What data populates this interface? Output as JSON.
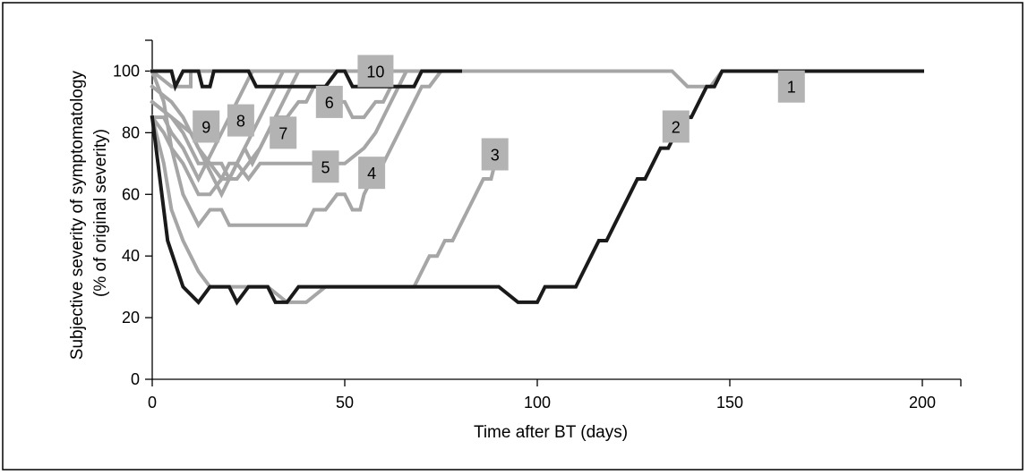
{
  "chart_data": {
    "type": "line",
    "xlabel": "Time after BT (days)",
    "ylabel_lines": [
      "Subjective severity of symptomatology",
      "(% of original severity)"
    ],
    "xlim": [
      0,
      210
    ],
    "ylim": [
      0,
      110
    ],
    "xticks": [
      0,
      50,
      100,
      150,
      200
    ],
    "yticks": [
      0,
      20,
      40,
      60,
      80,
      100
    ],
    "grid": false,
    "legend": "none",
    "colors": {
      "black": "#1a1a1a",
      "gray": "#a6a6a6",
      "label_box": "#b3b3b3"
    },
    "series": [
      {
        "name": "1",
        "color": "gray",
        "label_at": [
          166,
          95
        ],
        "points": [
          [
            0,
            100
          ],
          [
            5,
            95
          ],
          [
            10,
            95
          ],
          [
            10,
            100
          ],
          [
            130,
            100
          ],
          [
            132,
            100
          ],
          [
            135,
            100
          ],
          [
            139,
            95
          ],
          [
            142,
            95
          ],
          [
            145,
            95
          ],
          [
            148,
            100
          ],
          [
            160,
            100
          ],
          [
            164,
            100
          ],
          [
            166,
            95
          ],
          [
            167,
            100
          ],
          [
            200,
            100
          ]
        ]
      },
      {
        "name": "2",
        "color": "black",
        "label_at": [
          136,
          82
        ],
        "points": [
          [
            0,
            85
          ],
          [
            4,
            45
          ],
          [
            8,
            30
          ],
          [
            12,
            25
          ],
          [
            15,
            30
          ],
          [
            20,
            30
          ],
          [
            22,
            25
          ],
          [
            25,
            30
          ],
          [
            30,
            30
          ],
          [
            32,
            25
          ],
          [
            35,
            25
          ],
          [
            38,
            30
          ],
          [
            45,
            30
          ],
          [
            50,
            30
          ],
          [
            60,
            30
          ],
          [
            85,
            30
          ],
          [
            90,
            30
          ],
          [
            95,
            25
          ],
          [
            100,
            25
          ],
          [
            102,
            30
          ],
          [
            105,
            30
          ],
          [
            110,
            30
          ],
          [
            112,
            35
          ],
          [
            114,
            40
          ],
          [
            116,
            45
          ],
          [
            118,
            45
          ],
          [
            120,
            50
          ],
          [
            122,
            55
          ],
          [
            124,
            60
          ],
          [
            126,
            65
          ],
          [
            128,
            65
          ],
          [
            130,
            70
          ],
          [
            132,
            75
          ],
          [
            134,
            75
          ],
          [
            136,
            80
          ],
          [
            138,
            85
          ],
          [
            140,
            85
          ],
          [
            142,
            90
          ],
          [
            144,
            95
          ],
          [
            146,
            95
          ],
          [
            148,
            100
          ],
          [
            200,
            100
          ]
        ]
      },
      {
        "name": "3",
        "color": "gray",
        "label_at": [
          89,
          73
        ],
        "points": [
          [
            0,
            85
          ],
          [
            3,
            70
          ],
          [
            5,
            55
          ],
          [
            8,
            45
          ],
          [
            12,
            35
          ],
          [
            15,
            30
          ],
          [
            20,
            30
          ],
          [
            25,
            30
          ],
          [
            30,
            30
          ],
          [
            35,
            25
          ],
          [
            40,
            25
          ],
          [
            45,
            30
          ],
          [
            60,
            30
          ],
          [
            68,
            30
          ],
          [
            70,
            35
          ],
          [
            72,
            40
          ],
          [
            74,
            40
          ],
          [
            76,
            45
          ],
          [
            78,
            45
          ],
          [
            80,
            50
          ],
          [
            82,
            55
          ],
          [
            84,
            60
          ],
          [
            86,
            65
          ],
          [
            88,
            65
          ],
          [
            89,
            70
          ]
        ]
      },
      {
        "name": "4",
        "color": "gray",
        "label_at": [
          57,
          67
        ],
        "points": [
          [
            0,
            100
          ],
          [
            3,
            90
          ],
          [
            5,
            75
          ],
          [
            8,
            60
          ],
          [
            10,
            55
          ],
          [
            12,
            50
          ],
          [
            15,
            55
          ],
          [
            18,
            55
          ],
          [
            20,
            50
          ],
          [
            25,
            50
          ],
          [
            30,
            50
          ],
          [
            35,
            50
          ],
          [
            40,
            50
          ],
          [
            42,
            55
          ],
          [
            45,
            55
          ],
          [
            48,
            60
          ],
          [
            50,
            60
          ],
          [
            52,
            55
          ],
          [
            54,
            55
          ],
          [
            55,
            60
          ],
          [
            57,
            65
          ],
          [
            60,
            70
          ],
          [
            62,
            75
          ],
          [
            64,
            80
          ],
          [
            66,
            85
          ],
          [
            68,
            90
          ],
          [
            70,
            95
          ],
          [
            72,
            95
          ],
          [
            75,
            100
          ],
          [
            80,
            100
          ]
        ]
      },
      {
        "name": "5",
        "color": "gray",
        "label_at": [
          45,
          69
        ],
        "points": [
          [
            0,
            85
          ],
          [
            3,
            80
          ],
          [
            5,
            75
          ],
          [
            8,
            70
          ],
          [
            10,
            65
          ],
          [
            12,
            60
          ],
          [
            15,
            60
          ],
          [
            18,
            65
          ],
          [
            20,
            65
          ],
          [
            22,
            70
          ],
          [
            25,
            65
          ],
          [
            28,
            70
          ],
          [
            30,
            70
          ],
          [
            35,
            70
          ],
          [
            40,
            70
          ],
          [
            45,
            70
          ],
          [
            50,
            70
          ],
          [
            55,
            75
          ],
          [
            58,
            80
          ],
          [
            60,
            85
          ],
          [
            62,
            90
          ],
          [
            64,
            95
          ],
          [
            66,
            100
          ],
          [
            70,
            100
          ]
        ]
      },
      {
        "name": "6",
        "color": "gray",
        "label_at": [
          46,
          90
        ],
        "points": [
          [
            0,
            90
          ],
          [
            5,
            85
          ],
          [
            10,
            80
          ],
          [
            12,
            75
          ],
          [
            15,
            70
          ],
          [
            18,
            70
          ],
          [
            20,
            65
          ],
          [
            22,
            65
          ],
          [
            25,
            70
          ],
          [
            28,
            75
          ],
          [
            30,
            80
          ],
          [
            32,
            85
          ],
          [
            35,
            85
          ],
          [
            38,
            90
          ],
          [
            40,
            90
          ],
          [
            42,
            95
          ],
          [
            45,
            95
          ],
          [
            48,
            90
          ],
          [
            50,
            90
          ],
          [
            52,
            85
          ],
          [
            55,
            85
          ],
          [
            58,
            90
          ],
          [
            60,
            90
          ],
          [
            62,
            95
          ],
          [
            64,
            95
          ],
          [
            66,
            100
          ],
          [
            70,
            100
          ]
        ]
      },
      {
        "name": "7",
        "color": "gray",
        "label_at": [
          34,
          80
        ],
        "points": [
          [
            0,
            90
          ],
          [
            5,
            85
          ],
          [
            8,
            80
          ],
          [
            10,
            75
          ],
          [
            12,
            70
          ],
          [
            15,
            70
          ],
          [
            18,
            65
          ],
          [
            20,
            70
          ],
          [
            22,
            70
          ],
          [
            24,
            75
          ],
          [
            26,
            70
          ],
          [
            28,
            75
          ],
          [
            30,
            80
          ],
          [
            32,
            85
          ],
          [
            34,
            90
          ],
          [
            36,
            95
          ],
          [
            38,
            100
          ],
          [
            45,
            100
          ]
        ]
      },
      {
        "name": "8",
        "color": "gray",
        "label_at": [
          23,
          84
        ],
        "points": [
          [
            0,
            95
          ],
          [
            5,
            90
          ],
          [
            8,
            85
          ],
          [
            10,
            80
          ],
          [
            12,
            75
          ],
          [
            14,
            70
          ],
          [
            16,
            65
          ],
          [
            18,
            60
          ],
          [
            20,
            65
          ],
          [
            22,
            70
          ],
          [
            24,
            75
          ],
          [
            26,
            80
          ],
          [
            28,
            85
          ],
          [
            30,
            90
          ],
          [
            32,
            95
          ],
          [
            34,
            100
          ],
          [
            40,
            100
          ]
        ]
      },
      {
        "name": "9",
        "color": "gray",
        "label_at": [
          14,
          82
        ],
        "points": [
          [
            0,
            85
          ],
          [
            3,
            85
          ],
          [
            5,
            80
          ],
          [
            8,
            75
          ],
          [
            10,
            70
          ],
          [
            12,
            65
          ],
          [
            14,
            70
          ],
          [
            16,
            75
          ],
          [
            18,
            80
          ],
          [
            20,
            85
          ],
          [
            22,
            90
          ],
          [
            24,
            95
          ],
          [
            26,
            100
          ],
          [
            30,
            100
          ]
        ]
      },
      {
        "name": "10",
        "color": "black",
        "label_at": [
          58,
          100
        ],
        "points": [
          [
            0,
            100
          ],
          [
            5,
            100
          ],
          [
            6,
            95
          ],
          [
            8,
            100
          ],
          [
            12,
            100
          ],
          [
            13,
            95
          ],
          [
            15,
            95
          ],
          [
            16,
            100
          ],
          [
            25,
            100
          ],
          [
            27,
            95
          ],
          [
            30,
            95
          ],
          [
            35,
            95
          ],
          [
            40,
            95
          ],
          [
            45,
            95
          ],
          [
            48,
            100
          ],
          [
            50,
            100
          ],
          [
            52,
            95
          ],
          [
            55,
            95
          ],
          [
            65,
            95
          ],
          [
            68,
            95
          ],
          [
            70,
            100
          ],
          [
            80,
            100
          ]
        ]
      }
    ]
  }
}
